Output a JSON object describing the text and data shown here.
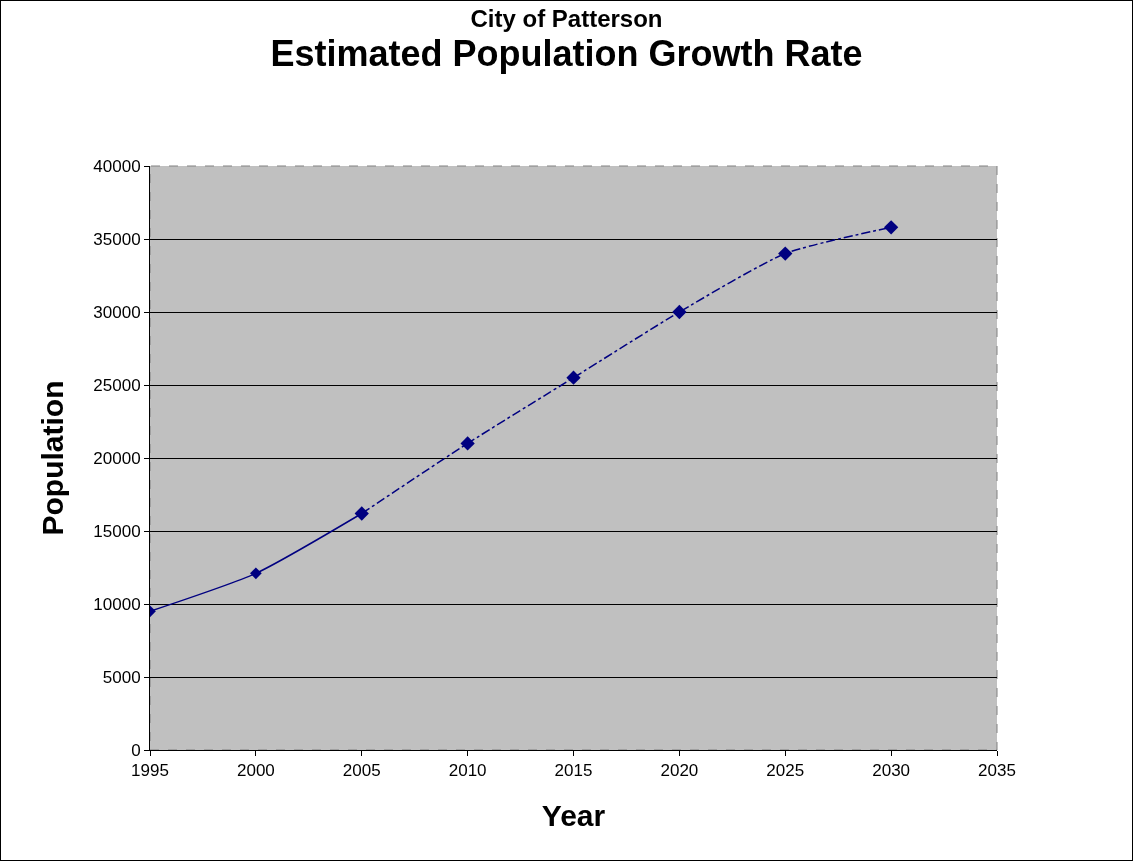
{
  "chart_data": {
    "type": "line",
    "title": "City of Patterson",
    "subtitle": "Estimated Population Growth Rate",
    "xlabel": "Year",
    "ylabel": "Population",
    "series": [
      {
        "color": "#000080",
        "line_style": "solid",
        "x": [
          1995,
          2000,
          2005
        ],
        "values": [
          9500,
          12100,
          16200
        ]
      },
      {
        "color": "#000080",
        "line_style": "dashdot",
        "x": [
          2005,
          2010,
          2015,
          2020,
          2025,
          2030
        ],
        "values": [
          16200,
          21000,
          25500,
          30000,
          34000,
          35800
        ]
      }
    ],
    "marker": "diamond",
    "xlim": [
      1995,
      2035
    ],
    "xticks": [
      1995,
      2000,
      2005,
      2010,
      2015,
      2020,
      2025,
      2030,
      2035
    ],
    "ylim": [
      0,
      40000
    ],
    "yticks": [
      0,
      5000,
      10000,
      15000,
      20000,
      25000,
      30000,
      35000,
      40000
    ],
    "grid": "y",
    "legend": false
  }
}
